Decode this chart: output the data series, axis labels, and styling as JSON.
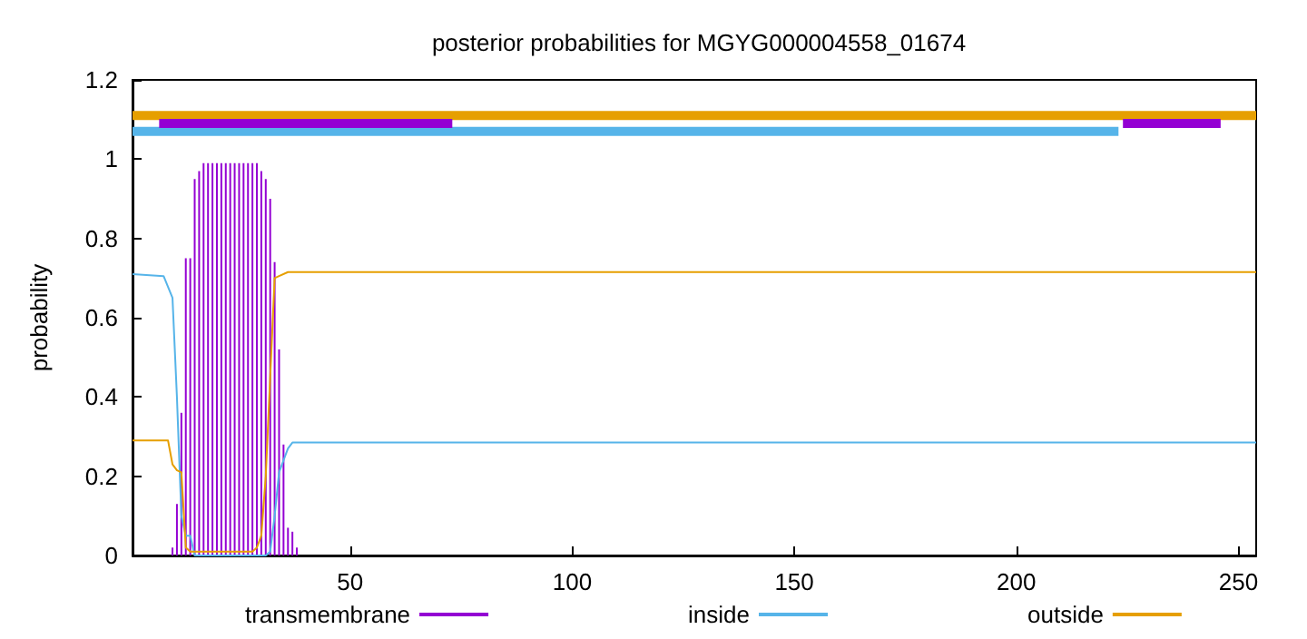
{
  "chart_data": {
    "type": "line",
    "title": "posterior probabilities for MGYG000004558_01674",
    "ylabel": "probability",
    "xlim": [
      1,
      254
    ],
    "xticks": [
      50,
      100,
      150,
      200,
      250
    ],
    "ylim": [
      0,
      1.2
    ],
    "yticks": [
      0,
      0.2,
      0.4,
      0.6,
      0.8,
      1,
      1.2
    ],
    "grid": false,
    "legend": "bottom",
    "marker": "none",
    "series": [
      {
        "name": "transmembrane",
        "type": "bar",
        "color": "#9400d3",
        "x": [
          1,
          2,
          3,
          4,
          5,
          6,
          7,
          8,
          9,
          10,
          11,
          12,
          13,
          14,
          15,
          16,
          17,
          18,
          19,
          20,
          21,
          22,
          23,
          24,
          25,
          26,
          27,
          28,
          29,
          30,
          31,
          32,
          33,
          34,
          35,
          36,
          37,
          38,
          39,
          40
        ],
        "values": [
          0,
          0,
          0,
          0,
          0,
          0,
          0,
          0,
          0,
          0.02,
          0.13,
          0.36,
          0.75,
          0.75,
          0.95,
          0.97,
          0.99,
          0.99,
          0.99,
          0.99,
          0.99,
          0.99,
          0.99,
          0.99,
          0.99,
          0.99,
          0.99,
          0.99,
          0.99,
          0.97,
          0.95,
          0.9,
          0.74,
          0.52,
          0.28,
          0.07,
          0.06,
          0.02,
          0,
          0
        ]
      },
      {
        "name": "inside",
        "color": "#56b4e9",
        "x": [
          1,
          8,
          10,
          11,
          12,
          13,
          14,
          15,
          31,
          32,
          33,
          34,
          35,
          36,
          37,
          254
        ],
        "values": [
          0.71,
          0.705,
          0.65,
          0.4,
          0.1,
          0.05,
          0.05,
          0,
          0,
          0.01,
          0.1,
          0.21,
          0.24,
          0.27,
          0.285,
          0.285
        ]
      },
      {
        "name": "outside",
        "color": "#e69f00",
        "x": [
          1,
          9,
          10,
          11,
          12,
          13,
          14,
          28,
          29,
          30,
          31,
          32,
          33,
          34,
          36,
          254
        ],
        "values": [
          0.29,
          0.29,
          0.23,
          0.215,
          0.21,
          0.02,
          0.01,
          0.01,
          0.02,
          0.05,
          0.2,
          0.45,
          0.7,
          0.705,
          0.715,
          0.715
        ]
      },
      {
        "color": "#e69f00",
        "x": [
          1,
          254
        ],
        "values": [
          1.11,
          1.11
        ]
      },
      {
        "color": "#56b4e9",
        "x": [
          1,
          223
        ],
        "values": [
          1.07,
          1.07
        ]
      },
      {
        "color": "#9400d3",
        "x": [
          7,
          73
        ],
        "values": [
          1.09,
          1.09
        ]
      },
      {
        "color": "#9400d3",
        "x": [
          224,
          246
        ],
        "values": [
          1.09,
          1.09
        ]
      }
    ]
  }
}
